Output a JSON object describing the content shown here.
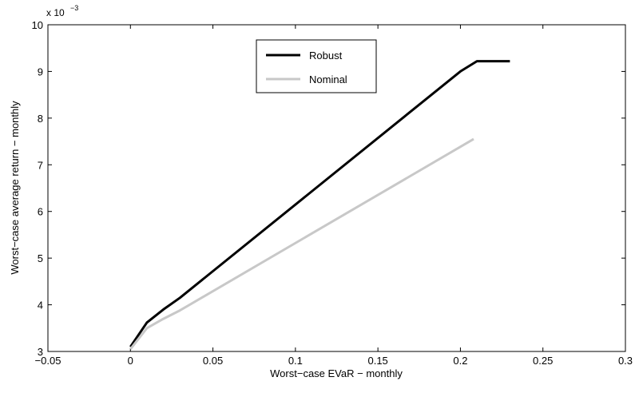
{
  "chart_data": {
    "type": "line",
    "title": "",
    "xlabel": "Worst−case EVaR − monthly",
    "ylabel": "Worst−case average return − monthly",
    "xlim": [
      -0.05,
      0.3
    ],
    "ylim": [
      3,
      10
    ],
    "y_multiplier_label": "x 10",
    "y_multiplier_exponent": "−3",
    "x_ticks": [
      -0.05,
      0,
      0.05,
      0.1,
      0.15,
      0.2,
      0.25,
      0.3
    ],
    "x_tick_labels": [
      "−0.05",
      "0",
      "0.05",
      "0.1",
      "0.15",
      "0.2",
      "0.25",
      "0.3"
    ],
    "y_ticks": [
      3,
      4,
      5,
      6,
      7,
      8,
      9,
      10
    ],
    "y_tick_labels": [
      "3",
      "4",
      "5",
      "6",
      "7",
      "8",
      "9",
      "10"
    ],
    "grid": false,
    "legend_position": "top-center",
    "series": [
      {
        "name": "Robust",
        "color": "#000000",
        "x": [
          0,
          0.01,
          0.02,
          0.03,
          0.2,
          0.21,
          0.23
        ],
        "y": [
          3.1,
          3.62,
          3.9,
          4.15,
          9.0,
          9.22,
          9.22
        ]
      },
      {
        "name": "Nominal",
        "color": "#c8c8c8",
        "x": [
          0,
          0.01,
          0.02,
          0.03,
          0.208
        ],
        "y": [
          3.05,
          3.5,
          3.7,
          3.88,
          7.55
        ]
      }
    ]
  }
}
